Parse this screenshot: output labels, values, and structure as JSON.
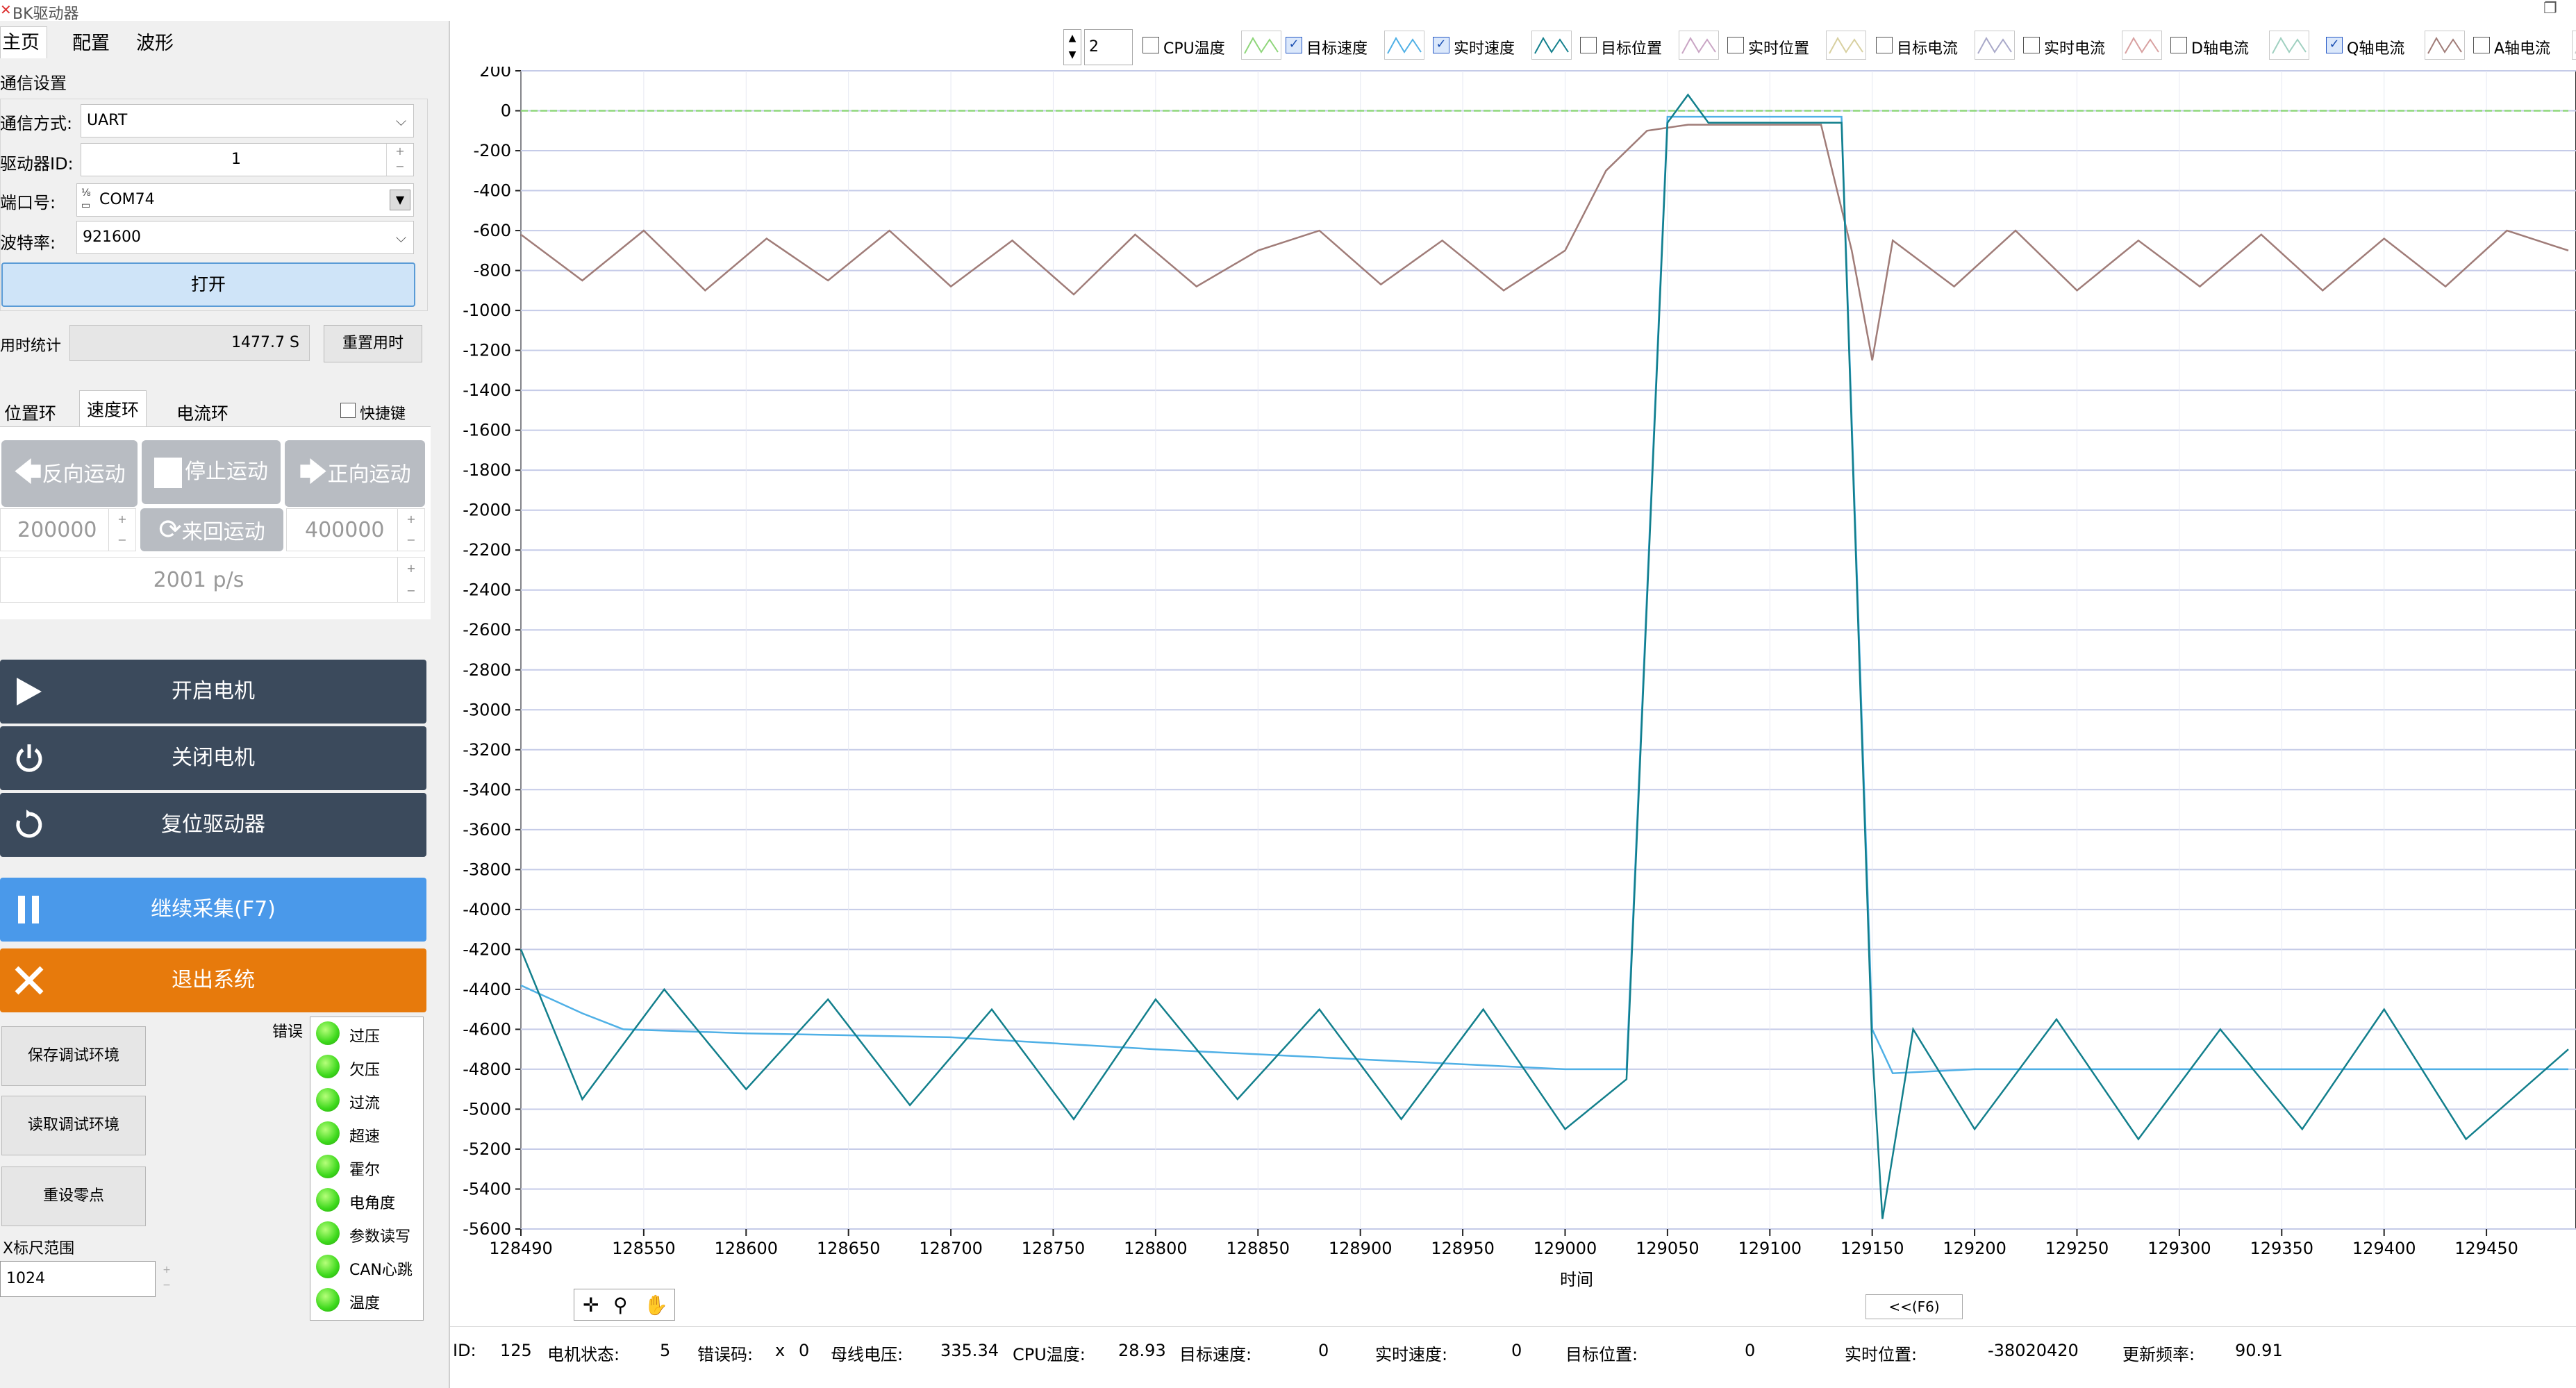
{
  "window": {
    "title": "BK驱动器",
    "restore_glyph": "❐"
  },
  "tabs": [
    "主页",
    "配置",
    "波形"
  ],
  "comm": {
    "group_title": "通信设置",
    "mode_label": "通信方式:",
    "mode_value": "UART",
    "id_label": "驱动器ID:",
    "id_value": "1",
    "port_label": "端口号:",
    "port_value": "COM74",
    "baud_label": "波特率:",
    "baud_value": "921600",
    "open_btn": "打开"
  },
  "timer": {
    "label": "用时统计",
    "value": "1477.7 S",
    "reset_btn": "重置用时"
  },
  "loop_tabs": [
    "位置环",
    "速度环",
    "电流环"
  ],
  "hotkey_label": "快捷键",
  "motion": {
    "reverse": "反向运动",
    "stop": "停止运动",
    "forward": "正向运动",
    "reciprocate": "来回运动",
    "left_value": "200000",
    "right_value": "400000",
    "speed_value": "2001 p/s"
  },
  "actions": {
    "start_motor": "开启电机",
    "stop_motor": "关闭电机",
    "reset_driver": "复位驱动器",
    "continue_capture": "继续采集(F7)",
    "exit": "退出系统"
  },
  "env": {
    "save": "保存调试环境",
    "load": "读取调试环境",
    "reset_zero": "重设零点"
  },
  "errors": {
    "title": "错误",
    "items": [
      "过压",
      "欠压",
      "过流",
      "超速",
      "霍尔",
      "电角度",
      "参数读写",
      "CAN心跳",
      "温度"
    ]
  },
  "xrange": {
    "label": "X标尺范围",
    "value": "1024"
  },
  "toolbar": {
    "count": "2",
    "channels": [
      {
        "name": "CPU温度",
        "checked": false,
        "color": "#8ed67a"
      },
      {
        "name": "目标速度",
        "checked": true,
        "color": "#4fb0e6"
      },
      {
        "name": "实时速度",
        "checked": true,
        "color": "#127f8c"
      },
      {
        "name": "目标位置",
        "checked": false,
        "color": "#c9a4c4"
      },
      {
        "name": "实时位置",
        "checked": false,
        "color": "#d8d0a0"
      },
      {
        "name": "目标电流",
        "checked": false,
        "color": "#a9a9c9"
      },
      {
        "name": "实时电流",
        "checked": false,
        "color": "#d8a0a0"
      },
      {
        "name": "D轴电流",
        "checked": false,
        "color": "#9fd0c0"
      },
      {
        "name": "Q轴电流",
        "checked": true,
        "color": "#a07c78"
      },
      {
        "name": "A轴电流",
        "checked": false,
        "color": "#c8c8c8"
      }
    ]
  },
  "chart_data": {
    "type": "line",
    "xlabel": "时间",
    "xlim": [
      128490,
      129490
    ],
    "ylim": [
      -5600,
      200
    ],
    "x_ticks": [
      128490,
      128550,
      128600,
      128650,
      128700,
      128750,
      128800,
      128850,
      128900,
      128950,
      129000,
      129050,
      129100,
      129150,
      129200,
      129250,
      129300,
      129350,
      129400,
      129450
    ],
    "y_ticks": [
      200,
      0,
      -200,
      -400,
      -600,
      -800,
      -1000,
      -1200,
      -1400,
      -1600,
      -1800,
      -2000,
      -2200,
      -2400,
      -2600,
      -2800,
      -3000,
      -3200,
      -3400,
      -3600,
      -3800,
      -4000,
      -4200,
      -4400,
      -4600,
      -4800,
      -5000,
      -5200,
      -5400,
      -5600
    ],
    "grid": true,
    "series": [
      {
        "name": "目标速度",
        "color": "#4fb0e6",
        "x": [
          128490,
          128505,
          128520,
          128540,
          128600,
          128700,
          128800,
          128900,
          129000,
          129030,
          129050,
          129100,
          129135,
          129150,
          129160,
          129200,
          129300,
          129400,
          129490
        ],
        "values": [
          -4380,
          -4450,
          -4520,
          -4600,
          -4620,
          -4640,
          -4700,
          -4750,
          -4800,
          -4800,
          -30,
          -30,
          -30,
          -4600,
          -4820,
          -4800,
          -4800,
          -4800,
          -4800
        ]
      },
      {
        "name": "实时速度",
        "color": "#127f8c",
        "x": [
          128490,
          128520,
          128560,
          128600,
          128640,
          128680,
          128720,
          128760,
          128800,
          128840,
          128880,
          128920,
          128960,
          129000,
          129030,
          129050,
          129060,
          129070,
          129100,
          129135,
          129150,
          129155,
          129170,
          129200,
          129240,
          129280,
          129320,
          129360,
          129400,
          129440,
          129490
        ],
        "values": [
          -4200,
          -4950,
          -4400,
          -4900,
          -4450,
          -4980,
          -4500,
          -5050,
          -4450,
          -4950,
          -4500,
          -5050,
          -4500,
          -5100,
          -4850,
          -60,
          80,
          -60,
          -60,
          -60,
          -4700,
          -5550,
          -4600,
          -5100,
          -4550,
          -5150,
          -4600,
          -5100,
          -4500,
          -5150,
          -4700
        ]
      },
      {
        "name": "Q轴电流",
        "color": "#a07c78",
        "x": [
          128490,
          128520,
          128550,
          128580,
          128610,
          128640,
          128670,
          128700,
          128730,
          128760,
          128790,
          128820,
          128850,
          128880,
          128910,
          128940,
          128970,
          129000,
          129020,
          129040,
          129060,
          129080,
          129100,
          129125,
          129140,
          129150,
          129160,
          129190,
          129220,
          129250,
          129280,
          129310,
          129340,
          129370,
          129400,
          129430,
          129460,
          129490
        ],
        "values": [
          -620,
          -850,
          -600,
          -900,
          -640,
          -850,
          -600,
          -880,
          -650,
          -920,
          -620,
          -880,
          -700,
          -600,
          -870,
          -650,
          -900,
          -700,
          -300,
          -100,
          -70,
          -70,
          -70,
          -70,
          -700,
          -1250,
          -650,
          -880,
          -600,
          -900,
          -650,
          -880,
          -620,
          -900,
          -640,
          -880,
          -600,
          -700
        ]
      },
      {
        "name": "CPU温度",
        "color": "#8ed67a",
        "x": [
          128490,
          129490
        ],
        "values": [
          0,
          0
        ]
      }
    ]
  },
  "plot_tools": {
    "cursor": "✛",
    "zoom": "⚲",
    "pan": "✋",
    "nav": "<<(F6)"
  },
  "status": {
    "id_label": "ID:",
    "id_value": "125",
    "state_label": "电机状态:",
    "state_value": "5",
    "err_label": "错误码:",
    "err_x": "x",
    "err_value": "0",
    "bus_label": "母线电压:",
    "bus_value": "335.34",
    "cpu_label": "CPU温度:",
    "cpu_value": "28.93",
    "tspeed_label": "目标速度:",
    "tspeed_value": "0",
    "rspeed_label": "实时速度:",
    "rspeed_value": "0",
    "tpos_label": "目标位置:",
    "tpos_value": "0",
    "rpos_label": "实时位置:",
    "rpos_value": "-38020420",
    "freq_label": "更新频率:",
    "freq_value": "90.91"
  }
}
